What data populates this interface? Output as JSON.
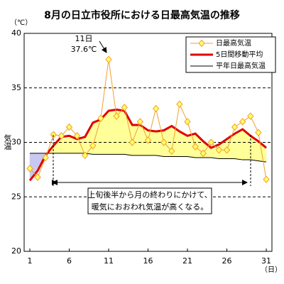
{
  "chart_data": {
    "type": "line",
    "title": "8月の日立市役所における日最高気温の推移",
    "y_label": "気温",
    "y_unit": "（℃）",
    "x_unit": "（日）",
    "x": [
      1,
      2,
      3,
      4,
      5,
      6,
      7,
      8,
      9,
      10,
      11,
      12,
      13,
      14,
      15,
      16,
      17,
      18,
      19,
      20,
      21,
      22,
      23,
      24,
      25,
      26,
      27,
      28,
      29,
      30,
      31
    ],
    "xlim": [
      1,
      31
    ],
    "xticks": [
      1,
      6,
      11,
      16,
      21,
      26,
      31
    ],
    "ylim": [
      20,
      40
    ],
    "yticks": [
      20,
      25,
      30,
      35,
      40
    ],
    "grid": true,
    "legend": "upper right",
    "series": [
      {
        "name": "日最高気温",
        "color": "#f0a030",
        "values": [
          27.6,
          26.8,
          28.6,
          30.7,
          30.6,
          31.4,
          30.6,
          28.8,
          29.7,
          32.2,
          37.6,
          32.4,
          33.2,
          30.0,
          31.9,
          30.2,
          33.1,
          30.0,
          29.2,
          33.5,
          31.9,
          29.6,
          29.0,
          30.0,
          29.3,
          29.3,
          31.4,
          31.9,
          32.4,
          30.9,
          26.6
        ]
      },
      {
        "name": "5日間移動平均",
        "color": "#e00000",
        "values": [
          26.5,
          27.4,
          28.8,
          29.7,
          30.5,
          30.6,
          30.3,
          30.5,
          31.8,
          32.1,
          32.9,
          33.0,
          32.9,
          31.6,
          31.6,
          31.1,
          31.0,
          31.1,
          31.5,
          31.0,
          30.6,
          30.8,
          30.1,
          29.5,
          29.8,
          30.3,
          30.8,
          31.2,
          30.6,
          30.1,
          29.5
        ]
      },
      {
        "name": "平年日最高気温",
        "color": "#000000",
        "values": [
          29.0,
          29.0,
          29.0,
          29.0,
          29.0,
          29.0,
          29.0,
          29.0,
          28.9,
          28.9,
          28.9,
          28.9,
          28.9,
          28.8,
          28.8,
          28.8,
          28.8,
          28.7,
          28.7,
          28.7,
          28.7,
          28.6,
          28.6,
          28.6,
          28.5,
          28.5,
          28.5,
          28.4,
          28.4,
          28.3,
          28.2
        ]
      }
    ],
    "annotations": [
      "11日",
      "37.6℃"
    ],
    "note": [
      "上旬後半から月の終わりにかけて、",
      "暖気におおわれ気温が高くなる。"
    ]
  }
}
